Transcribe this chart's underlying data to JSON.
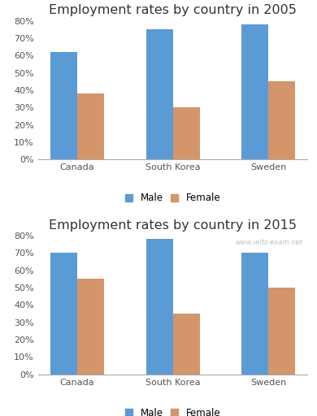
{
  "title_2005": "Employment rates by country in 2005",
  "title_2015": "Employment rates by country in 2015",
  "categories": [
    "Canada",
    "South Korea",
    "Sweden"
  ],
  "male_2005": [
    62,
    75,
    78
  ],
  "female_2005": [
    38,
    30,
    45
  ],
  "male_2015": [
    70,
    78,
    70
  ],
  "female_2015": [
    55,
    35,
    50
  ],
  "male_color": "#5b9bd5",
  "female_color": "#d4956a",
  "ylim": [
    0,
    80
  ],
  "yticks": [
    0,
    10,
    20,
    30,
    40,
    50,
    60,
    70,
    80
  ],
  "ytick_labels": [
    "0%",
    "10%",
    "20%",
    "30%",
    "40%",
    "50%",
    "60%",
    "70%",
    "80%"
  ],
  "legend_male": "Male",
  "legend_female": "Female",
  "watermark": "www.ielts-exam.net",
  "bg_color": "#ffffff",
  "title_fontsize": 11.5,
  "tick_fontsize": 8,
  "legend_fontsize": 8.5
}
